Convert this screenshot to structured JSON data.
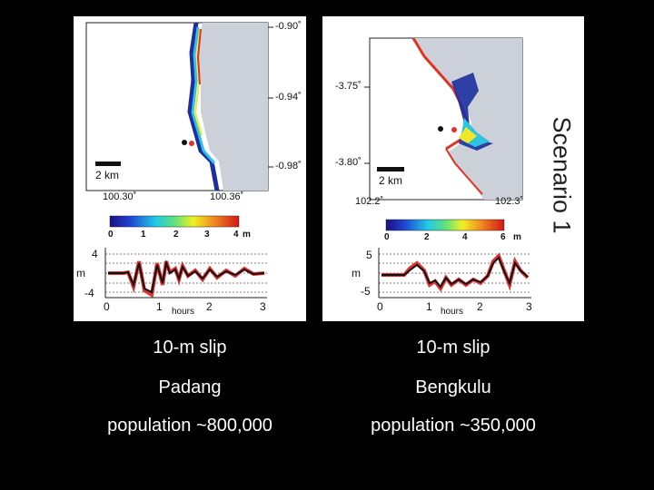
{
  "left_panel": {
    "lat_ticks": [
      "-0.90˚",
      "-0.94˚",
      "-0.98˚"
    ],
    "lon_ticks": [
      "100.30˚",
      "100.36˚"
    ],
    "scale_bar": "2 km",
    "colorbar_ticks": [
      "0",
      "1",
      "2",
      "3",
      "4"
    ],
    "colorbar_unit": "m",
    "series_ylabel": "m",
    "series_yticks": [
      "4",
      "-4"
    ],
    "series_xticks": [
      "0",
      "1",
      "2",
      "3"
    ],
    "series_xlabel": "hours"
  },
  "right_panel": {
    "lat_ticks": [
      "-3.75˚",
      "-3.80˚"
    ],
    "lon_ticks": [
      "102.2˚",
      "102.3˚"
    ],
    "scale_bar": "2 km",
    "colorbar_ticks": [
      "0",
      "2",
      "4",
      "6"
    ],
    "colorbar_unit": "m",
    "series_ylabel": "m",
    "series_yticks": [
      "5",
      "-5"
    ],
    "series_xticks": [
      "0",
      "1",
      "2",
      "3"
    ],
    "series_xlabel": "hours"
  },
  "scenario_label": "Scenario 1",
  "captions": {
    "left": [
      "10-m slip",
      "Padang",
      "population ~800,000"
    ],
    "right": [
      "10-m slip",
      "Bengkulu",
      "population ~350,000"
    ]
  },
  "colors": {
    "land": "#ccd0d8",
    "sea": "#ffffff",
    "model": "#111111",
    "observed": "#e03030"
  }
}
